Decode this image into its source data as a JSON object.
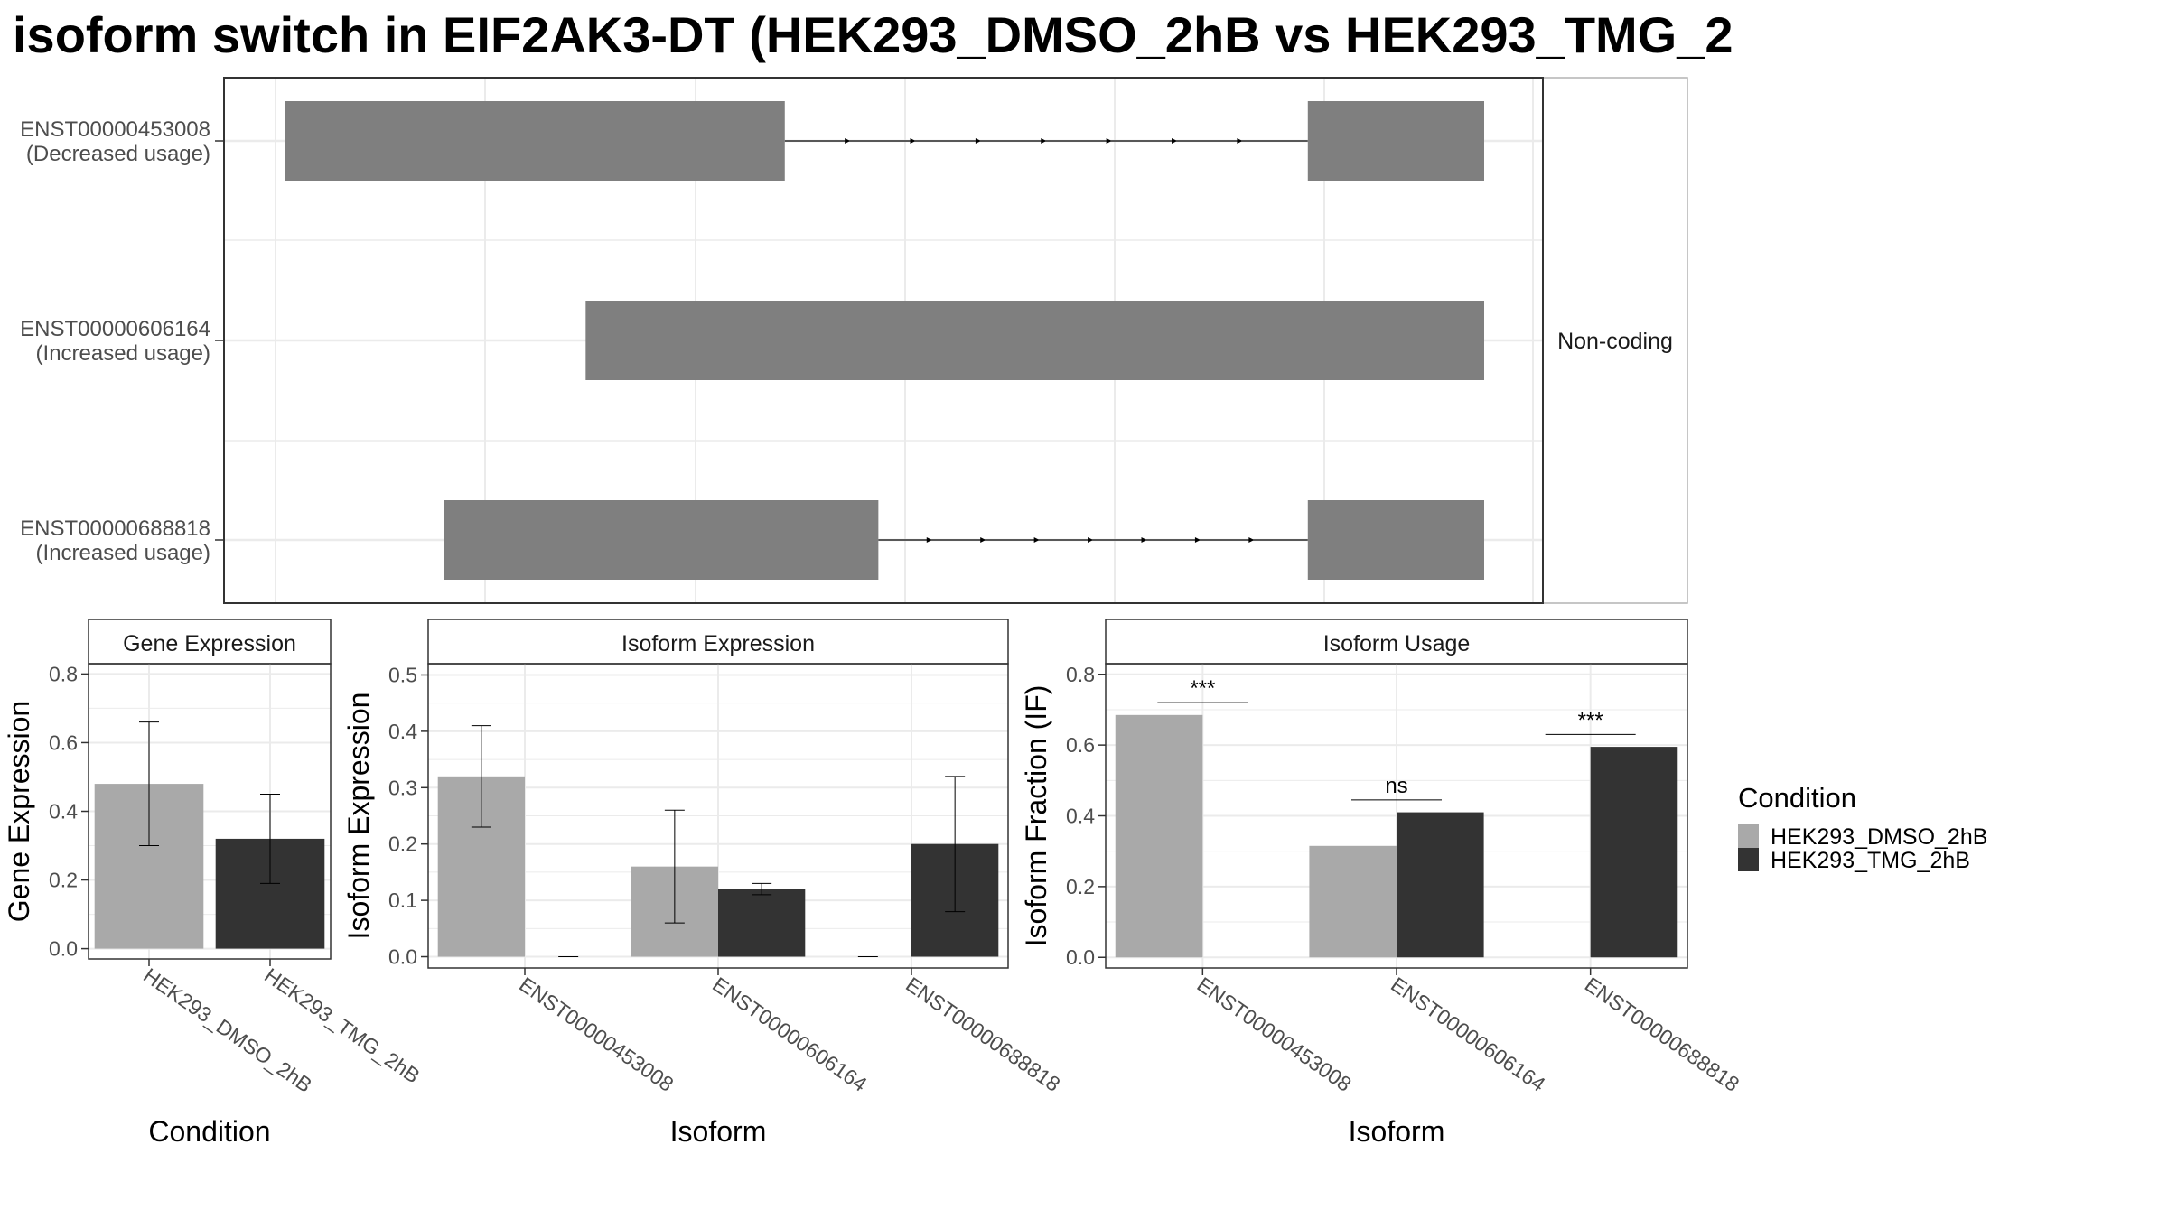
{
  "title": "isoform switch in EIF2AK3-DT (HEK293_DMSO_2hB vs HEK293_TMG_2",
  "colors": {
    "dmso": "#a9a9a9",
    "tmg": "#333333",
    "exon": "#7f7f7f",
    "grid": "#ebebeb",
    "strip_bg": "#ffffff"
  },
  "legend": {
    "title": "Condition",
    "items": [
      {
        "label": "HEK293_DMSO_2hB",
        "color": "#a9a9a9"
      },
      {
        "label": "HEK293_TMG_2hB",
        "color": "#333333"
      }
    ]
  },
  "structure": {
    "facet_label": "Non-coding",
    "transcripts": [
      {
        "id": "ENST00000453008",
        "usage": "(Decreased usage)",
        "exons": [
          [
            0.0,
            0.417
          ],
          [
            0.853,
            1.0
          ]
        ]
      },
      {
        "id": "ENST00000606164",
        "usage": "(Increased usage)",
        "exons": [
          [
            0.251,
            1.0
          ]
        ]
      },
      {
        "id": "ENST00000688818",
        "usage": "(Increased usage)",
        "exons": [
          [
            0.133,
            0.495
          ],
          [
            0.853,
            1.0
          ]
        ]
      }
    ]
  },
  "chart_data": [
    {
      "type": "bar",
      "strip": "Gene Expression",
      "xlabel": "Condition",
      "ylabel": "Gene Expression",
      "ylim": [
        -0.03,
        0.83
      ],
      "yticks": [
        "0.0",
        "0.2",
        "0.4",
        "0.6",
        "0.8"
      ],
      "categories": [
        "HEK293_DMSO_2hB",
        "HEK293_TMG_2hB"
      ],
      "values": [
        0.48,
        0.32
      ],
      "error_low": [
        0.3,
        0.19
      ],
      "error_high": [
        0.66,
        0.45
      ]
    },
    {
      "type": "bar",
      "strip": "Isoform Expression",
      "xlabel": "Isoform",
      "ylabel": "Isoform Expression",
      "ylim": [
        -0.02,
        0.52
      ],
      "yticks": [
        "0.0",
        "0.1",
        "0.2",
        "0.3",
        "0.4",
        "0.5"
      ],
      "categories": [
        "ENST00000453008",
        "ENST00000606164",
        "ENST00000688818"
      ],
      "series": [
        {
          "name": "HEK293_DMSO_2hB",
          "values": [
            0.32,
            0.16,
            0.0
          ],
          "error_low": [
            0.23,
            0.06,
            0.0
          ],
          "error_high": [
            0.41,
            0.26,
            0.0
          ]
        },
        {
          "name": "HEK293_TMG_2hB",
          "values": [
            0.0,
            0.12,
            0.2
          ],
          "error_low": [
            0.0,
            0.11,
            0.08
          ],
          "error_high": [
            0.0,
            0.13,
            0.32
          ]
        }
      ]
    },
    {
      "type": "bar",
      "strip": "Isoform Usage",
      "xlabel": "Isoform",
      "ylabel": "Isoform Fraction (IF)",
      "ylim": [
        -0.03,
        0.83
      ],
      "yticks": [
        "0.0",
        "0.2",
        "0.4",
        "0.6",
        "0.8"
      ],
      "categories": [
        "ENST00000453008",
        "ENST00000606164",
        "ENST00000688818"
      ],
      "series": [
        {
          "name": "HEK293_DMSO_2hB",
          "values": [
            0.685,
            0.315,
            0.0
          ]
        },
        {
          "name": "HEK293_TMG_2hB",
          "values": [
            0.0,
            0.41,
            0.595
          ]
        }
      ],
      "significance": [
        {
          "label": "***",
          "y": 0.72
        },
        {
          "label": "ns",
          "y": 0.445
        },
        {
          "label": "***",
          "y": 0.63
        }
      ]
    }
  ]
}
